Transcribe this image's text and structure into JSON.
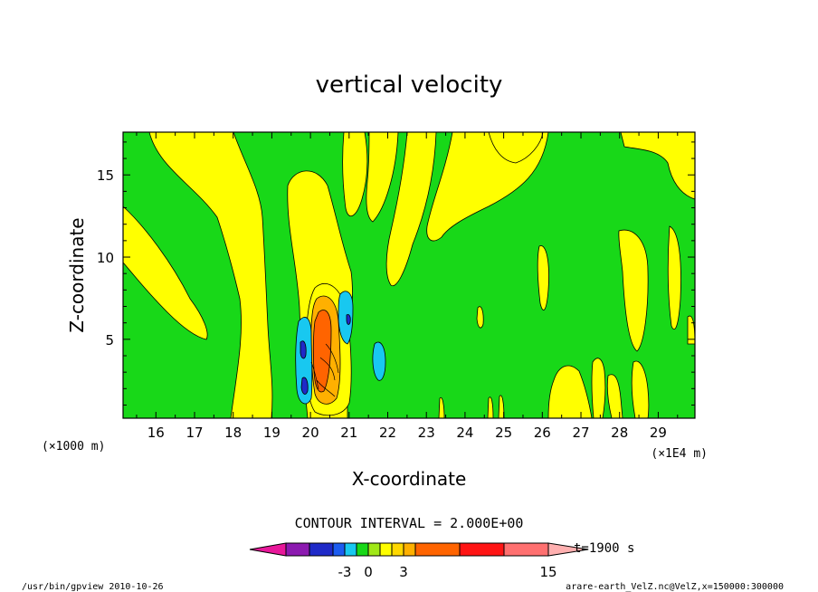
{
  "chart_data": {
    "type": "heatmap",
    "title": "vertical velocity",
    "xlabel": "X-coordinate",
    "ylabel": "Z-coordinate",
    "x_scale_note": "(×1E4 m)",
    "y_scale_note": "(×1000 m)",
    "xlim": [
      15.15,
      29.95
    ],
    "ylim": [
      0.2,
      17.6
    ],
    "x_ticks": [
      16,
      17,
      18,
      19,
      20,
      21,
      22,
      23,
      24,
      25,
      26,
      27,
      28,
      29
    ],
    "y_ticks": [
      5,
      10,
      15
    ],
    "contour_interval_text": "CONTOUR INTERVAL = 2.000E+00",
    "colorbar": {
      "colors": [
        "#e8189a",
        "#8c1ab0",
        "#1f2ac8",
        "#1c5cf0",
        "#18c8f0",
        "#18d818",
        "#a0e818",
        "#ffff00",
        "#ffd800",
        "#ffb000",
        "#ff6400",
        "#ff1414",
        "#ff7070",
        "#ffb0b0"
      ],
      "tick_labels": [
        "-3",
        "0",
        "3",
        "15"
      ],
      "tick_values": [
        -3,
        0,
        3,
        15
      ]
    },
    "time_label": "t=1900 s",
    "features": [
      {
        "kind": "updraft_core",
        "x": 20.15,
        "z": 5.2,
        "max_value": 15
      },
      {
        "kind": "downdraft",
        "x": 19.75,
        "z": 4.2,
        "min_value": -3
      },
      {
        "kind": "downdraft",
        "x": 20.9,
        "z": 6.6,
        "min_value": -3
      },
      {
        "kind": "downdraft",
        "x": 21.75,
        "z": 3.8,
        "min_value": -1
      }
    ]
  },
  "footer": {
    "left": "/usr/bin/gpview  2010-10-26",
    "right": "arare-earth_VelZ.nc@VelZ,x=150000:300000"
  }
}
